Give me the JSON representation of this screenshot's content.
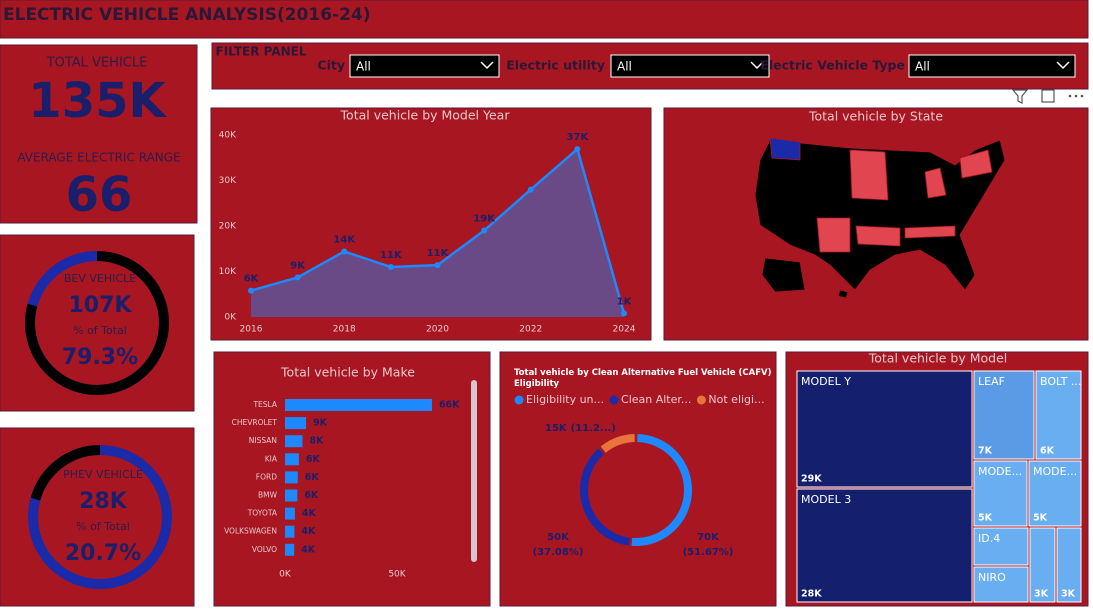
{
  "header": {
    "title": "ELECTRIC VEHICLE ANALYSIS(2016-24)"
  },
  "kpis": [
    {
      "label": "TOTAL VEHICLE",
      "value": 135000,
      "value_label": "135K"
    },
    {
      "label": "AVERAGE ELECTRIC RANGE",
      "value": 66
    }
  ],
  "kpi_rings": [
    {
      "title": "BEV VEHICLE",
      "count": 107000,
      "count_label": "107K",
      "subtitle": "% of Total",
      "share": 79.3,
      "share_label": "79.3%",
      "color": "#000000",
      "track_color": "#1a2aa8"
    },
    {
      "title": "PHEV VEHICLE",
      "count": 28000,
      "count_label": "28K",
      "subtitle": "% of Total",
      "share": 20.7,
      "share_label": "20.7%",
      "color": "#000000",
      "track_color": "#1a2aa8"
    }
  ],
  "filters": {
    "title": "FILTER PANEL",
    "items": [
      {
        "label": "City",
        "selected": "All"
      },
      {
        "label": "Electric utility",
        "selected": "All"
      },
      {
        "label": "Electric Vehicle Type",
        "selected": "All"
      }
    ]
  },
  "chart_data": [
    {
      "type": "line",
      "title": "Total vehicle by Model Year",
      "x": [
        2016,
        2017,
        2018,
        2019,
        2020,
        2021,
        2022,
        2023,
        2024
      ],
      "values": [
        5800,
        8700,
        14400,
        11000,
        11400,
        19000,
        28000,
        36900,
        800
      ],
      "value_labels": [
        "6K",
        "9K",
        "14K",
        "11K",
        "11K",
        "19K",
        null,
        "37K",
        "1K"
      ],
      "color": "#1e88ff",
      "area_color": "#6a4a86",
      "xlim": [
        2016,
        2024
      ],
      "xticks": [
        2016,
        2018,
        2020,
        2022,
        2024
      ],
      "ylim": [
        0,
        40000
      ],
      "yticks": [
        {
          "value": 0,
          "label": "0K"
        },
        {
          "value": 10000,
          "label": "10K"
        },
        {
          "value": 20000,
          "label": "20K"
        },
        {
          "value": 30000,
          "label": "30K"
        },
        {
          "value": 40000,
          "label": "40K"
        }
      ],
      "grid": false
    },
    {
      "type": "map",
      "title": "Total vehicle by State"
    },
    {
      "type": "hbar",
      "title": "Total vehicle by Make",
      "categories": [
        "TESLA",
        "CHEVROLET",
        "NISSAN",
        "KIA",
        "FORD",
        "BMW",
        "TOYOTA",
        "VOLKSWAGEN",
        "VOLVO"
      ],
      "values": [
        65600,
        9400,
        7800,
        6200,
        5700,
        5500,
        4400,
        4200,
        4100
      ],
      "value_labels": [
        "66K",
        "9K",
        "8K",
        "6K",
        "6K",
        "6K",
        "4K",
        "4K",
        "4K"
      ],
      "color": "#1e88ff",
      "xlim": [
        0,
        80000
      ],
      "xticks": [
        {
          "value": 0,
          "label": "0K"
        },
        {
          "value": 50000,
          "label": "50K"
        }
      ]
    },
    {
      "type": "donut",
      "title": "Total vehicle by Clean Alternative Fuel Vehicle (CAFV) Eligibility",
      "series": [
        {
          "name": "Eligibility un...",
          "color": "#1e88ff",
          "value": 69800,
          "value_label": "70K",
          "percent": 51.67,
          "percent_label": "(51.67%)"
        },
        {
          "name": "Clean Alter...",
          "color": "#1a2aa8",
          "value": 50100,
          "value_label": "50K",
          "percent": 37.08,
          "percent_label": "(37.08%)"
        },
        {
          "name": "Not eligi...",
          "color": "#e8743b",
          "value": 15200,
          "value_label": "15K",
          "percent": 11.25,
          "percent_label": "(11.2...)"
        }
      ]
    },
    {
      "type": "treemap",
      "title": "Total vehicle by Model",
      "categories": [
        "MODEL Y",
        "MODEL 3",
        "LEAF",
        "BOLT ...",
        "MODE...",
        "MODE...",
        "ID.4",
        "NIRO",
        null,
        null
      ],
      "values": [
        29000,
        28000,
        7000,
        6000,
        5000,
        5000,
        4000,
        4000,
        3000,
        3000
      ],
      "value_labels": [
        "29K",
        "28K",
        "7K",
        "6K",
        "5K",
        "5K",
        null,
        null,
        "3K",
        "3K"
      ],
      "colors": [
        "#141f6e",
        "#141f6e",
        "#5b9be6",
        "#6aaef2",
        "#6aaef2",
        "#6aaef2",
        "#6aaef2",
        "#6aaef2",
        "#6aaef2",
        "#6aaef2"
      ]
    }
  ]
}
